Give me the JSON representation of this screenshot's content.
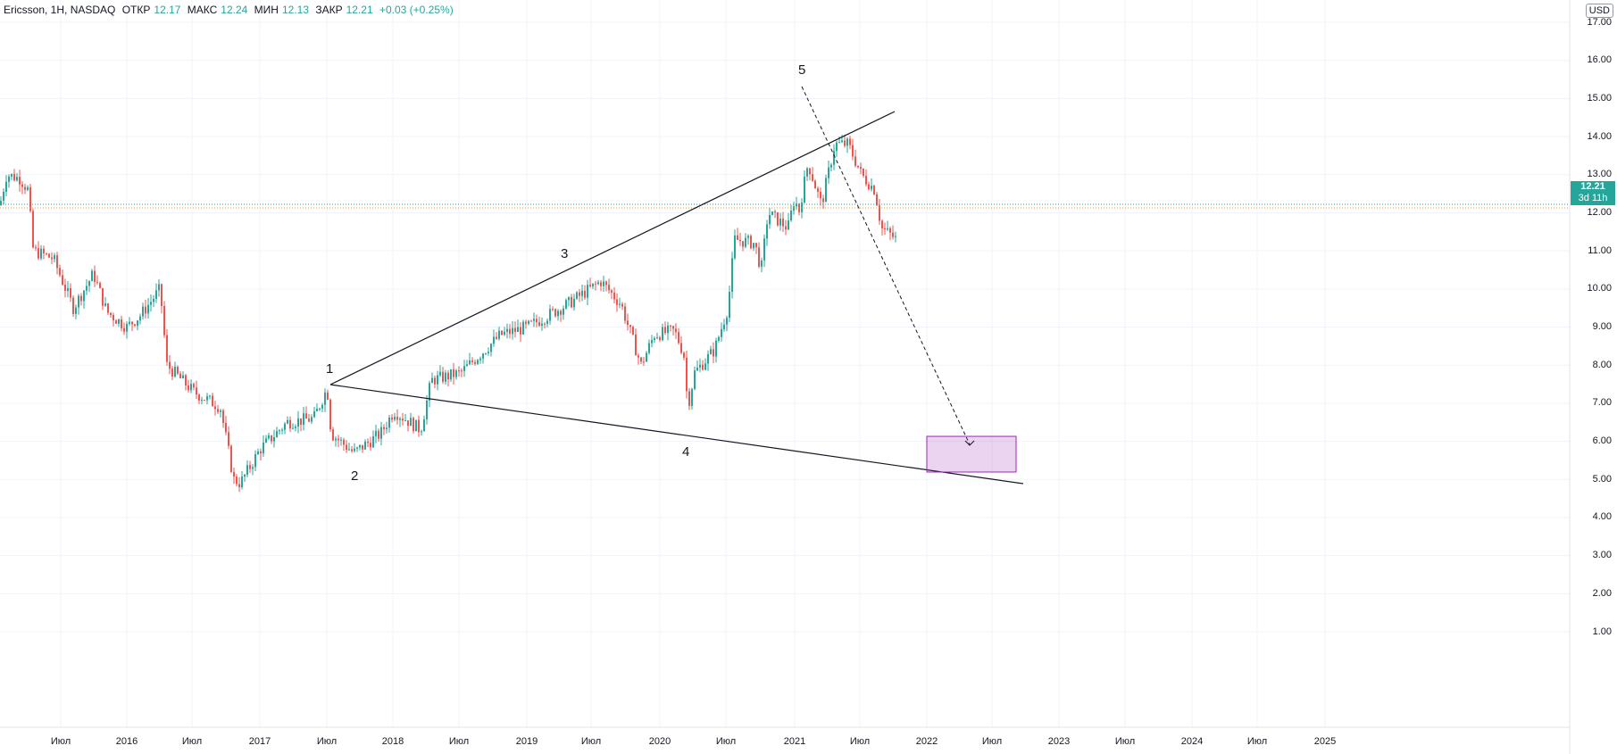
{
  "header": {
    "symbol": "Ericsson, 1H, NASDAQ",
    "open_label": "ОТКР",
    "open": "12.17",
    "high_label": "МАКС",
    "high": "12.24",
    "low_label": "МИН",
    "low": "12.13",
    "close_label": "ЗАКР",
    "close": "12.21",
    "change": "+0.03 (+0.25%)"
  },
  "currency": "USD",
  "price_axis": [
    "17.00",
    "16.00",
    "15.00",
    "14.00",
    "13.00",
    "12.00",
    "11.00",
    "10.00",
    "9.00",
    "8.00",
    "7.00",
    "6.00",
    "5.00",
    "4.00",
    "3.00",
    "2.00",
    "1.00"
  ],
  "last_price": {
    "value": "12.21",
    "countdown": "3d 11h"
  },
  "time_axis": [
    "Июл",
    "2016",
    "Июл",
    "2017",
    "Июл",
    "2018",
    "Июл",
    "2019",
    "Июл",
    "2020",
    "Июл",
    "2021",
    "Июл",
    "2022",
    "Июл",
    "2023",
    "Июл",
    "2024",
    "Июл",
    "2025"
  ],
  "wave_labels": [
    "1",
    "2",
    "3",
    "4",
    "5"
  ],
  "colors": {
    "up": "#26a69a",
    "down": "#ef5350",
    "target_box": "#9c27b0"
  }
}
